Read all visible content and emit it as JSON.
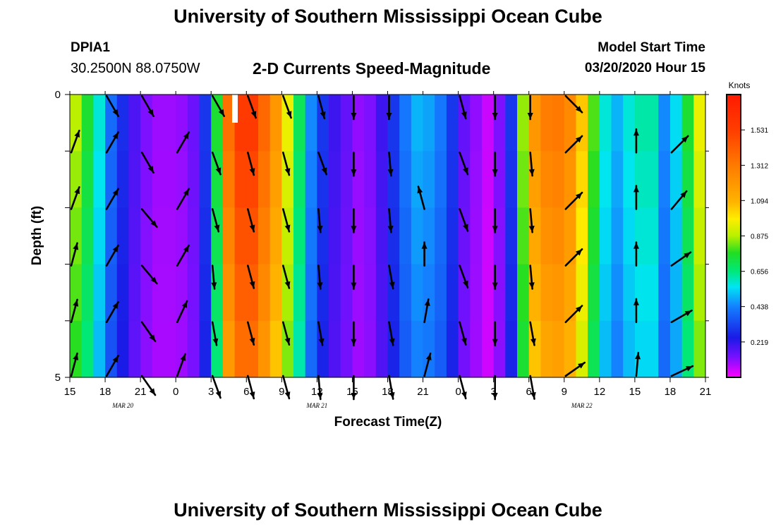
{
  "header": {
    "title": "University of Southern Mississippi Ocean Cube",
    "footer_title": "University of Southern Mississippi Ocean Cube",
    "station_id": "DPIA1",
    "station_coords": "30.2500N 88.0750W",
    "plot_title": "2-D Currents Speed-Magnitude",
    "model_start_label": "Model Start Time",
    "model_start_value": "03/20/2020 Hour 15"
  },
  "chart_data": {
    "type": "heatmap",
    "title": "2-D Currents Speed-Magnitude",
    "xlabel": "Forecast Time(Z)",
    "ylabel": "Depth (ft)",
    "x_tick_labels": [
      "15",
      "18",
      "21",
      "0",
      "3",
      "6",
      "9",
      "12",
      "15",
      "18",
      "21",
      "0",
      "3",
      "6",
      "9",
      "12",
      "15",
      "18",
      "21"
    ],
    "x_hours": [
      0,
      54
    ],
    "date_labels": [
      {
        "text": "MAR  20",
        "hour": 4.5
      },
      {
        "text": "MAR  21",
        "hour": 21
      },
      {
        "text": "MAR  22",
        "hour": 43.5
      }
    ],
    "y_tick_labels": [
      "0",
      "5"
    ],
    "ylim": [
      0,
      5
    ],
    "colorbar": {
      "label": "Knots",
      "min": 0.0,
      "max": 1.75,
      "tick_labels": [
        "1.531",
        "1.312",
        "1.094",
        "0.875",
        "0.656",
        "0.438",
        "0.219"
      ],
      "tick_values": [
        1.531,
        1.312,
        1.094,
        0.875,
        0.656,
        0.438,
        0.219
      ]
    },
    "speed_profile_knots": [
      0.88,
      0.75,
      0.58,
      0.4,
      0.28,
      0.18,
      0.12,
      0.09,
      0.09,
      0.1,
      0.14,
      0.3,
      0.75,
      1.35,
      1.55,
      1.55,
      1.38,
      1.2,
      0.95,
      0.7,
      0.45,
      0.3,
      0.2,
      0.15,
      0.1,
      0.12,
      0.2,
      0.3,
      0.42,
      0.5,
      0.48,
      0.42,
      0.3,
      0.15,
      0.1,
      0.05,
      0.12,
      0.3,
      0.85,
      1.2,
      1.3,
      1.32,
      1.25,
      1.05,
      0.8,
      0.58,
      0.5,
      0.58,
      0.62,
      0.62,
      0.45,
      0.55,
      0.75,
      0.95
    ],
    "vector_times": [
      0,
      3,
      6,
      9,
      12,
      15,
      18,
      21,
      24,
      27,
      30,
      33,
      36,
      39,
      42,
      45,
      48,
      51
    ],
    "vector_depths": [
      0,
      1,
      2,
      3,
      4,
      5
    ],
    "vector_angles_deg": [
      [
        null,
        150,
        150,
        null,
        150,
        160,
        160,
        165,
        180,
        180,
        null,
        165,
        180,
        180,
        135,
        null,
        null,
        null
      ],
      [
        20,
        30,
        150,
        30,
        160,
        165,
        165,
        160,
        180,
        175,
        null,
        160,
        180,
        175,
        45,
        null,
        0,
        45
      ],
      [
        20,
        30,
        140,
        30,
        165,
        165,
        165,
        175,
        180,
        175,
        345,
        160,
        180,
        175,
        45,
        null,
        0,
        40
      ],
      [
        15,
        30,
        140,
        30,
        175,
        165,
        165,
        175,
        180,
        170,
        0,
        160,
        180,
        175,
        45,
        null,
        0,
        55
      ],
      [
        15,
        30,
        145,
        25,
        170,
        165,
        165,
        170,
        180,
        170,
        10,
        165,
        180,
        170,
        45,
        null,
        0,
        60
      ],
      [
        15,
        30,
        145,
        20,
        160,
        165,
        165,
        175,
        180,
        170,
        15,
        165,
        180,
        170,
        55,
        null,
        5,
        65
      ]
    ]
  }
}
